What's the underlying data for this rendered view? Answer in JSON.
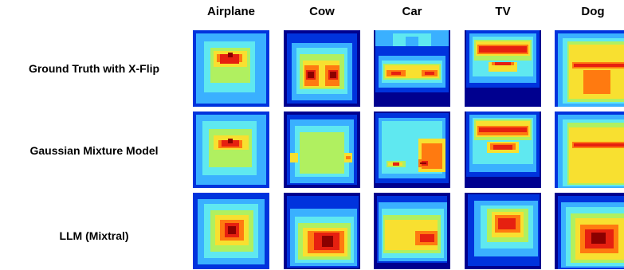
{
  "columns": [
    "Airplane",
    "Cow",
    "Car",
    "TV",
    "Dog"
  ],
  "rows": [
    "Ground Truth with X-Flip",
    "Gaussian Mixture Model",
    "LLM (Mixtral)"
  ],
  "colors": {
    "darkblue": "#00008f",
    "blue": "#0033dd",
    "lightblue": "#3ab0ff",
    "cyan": "#5fe8f0",
    "yellowgreen": "#b0f060",
    "yellow": "#f8e030",
    "orange": "#ff7a10",
    "red": "#e62010",
    "darkred": "#8b0000"
  },
  "heatmaps": [
    [
      {
        "bg": "blue",
        "blocks": [
          [
            4,
            4,
            92,
            92,
            "lightblue"
          ],
          [
            14,
            14,
            78,
            78,
            "cyan"
          ],
          [
            22,
            22,
            72,
            66,
            "yellowgreen"
          ],
          [
            26,
            26,
            68,
            46,
            "yellow"
          ],
          [
            30,
            30,
            62,
            40,
            "orange"
          ],
          [
            34,
            30,
            58,
            42,
            "red"
          ],
          [
            44,
            28,
            50,
            34,
            "darkred"
          ]
        ]
      },
      {
        "bg": "darkblue",
        "blocks": [
          [
            4,
            4,
            92,
            92,
            "blue"
          ],
          [
            10,
            16,
            86,
            88,
            "lightblue"
          ],
          [
            16,
            22,
            80,
            80,
            "cyan"
          ],
          [
            20,
            30,
            76,
            74,
            "yellowgreen"
          ],
          [
            24,
            38,
            70,
            72,
            "yellow"
          ],
          [
            26,
            44,
            44,
            70,
            "orange"
          ],
          [
            52,
            44,
            70,
            70,
            "orange"
          ],
          [
            28,
            50,
            40,
            62,
            "red"
          ],
          [
            56,
            50,
            68,
            62,
            "red"
          ],
          [
            30,
            52,
            38,
            60,
            "darkred"
          ],
          [
            58,
            52,
            66,
            60,
            "darkred"
          ]
        ]
      },
      {
        "bg": "darkblue",
        "blocks": [
          [
            2,
            0,
            94,
            20,
            "lightblue"
          ],
          [
            24,
            4,
            72,
            20,
            "cyan"
          ],
          [
            40,
            8,
            56,
            28,
            "lightblue"
          ],
          [
            2,
            20,
            94,
            78,
            "blue"
          ],
          [
            6,
            32,
            90,
            72,
            "lightblue"
          ],
          [
            10,
            38,
            86,
            66,
            "cyan"
          ],
          [
            12,
            42,
            84,
            62,
            "yellowgreen"
          ],
          [
            14,
            44,
            82,
            60,
            "yellow"
          ],
          [
            16,
            50,
            40,
            58,
            "orange"
          ],
          [
            60,
            50,
            80,
            58,
            "orange"
          ],
          [
            22,
            52,
            34,
            56,
            "red"
          ],
          [
            64,
            52,
            76,
            56,
            "red"
          ]
        ]
      },
      {
        "bg": "darkblue",
        "blocks": [
          [
            2,
            0,
            94,
            72,
            "blue"
          ],
          [
            6,
            4,
            90,
            66,
            "lightblue"
          ],
          [
            10,
            8,
            86,
            58,
            "cyan"
          ],
          [
            12,
            12,
            84,
            38,
            "yellowgreen"
          ],
          [
            14,
            14,
            82,
            32,
            "yellow"
          ],
          [
            16,
            18,
            80,
            30,
            "orange"
          ],
          [
            18,
            20,
            78,
            28,
            "red"
          ],
          [
            30,
            40,
            66,
            52,
            "yellow"
          ],
          [
            34,
            40,
            62,
            44,
            "orange"
          ],
          [
            38,
            40,
            58,
            44,
            "red"
          ]
        ]
      },
      {
        "bg": "blue",
        "blocks": [
          [
            4,
            4,
            96,
            96,
            "lightblue"
          ],
          [
            10,
            10,
            96,
            92,
            "cyan"
          ],
          [
            16,
            14,
            96,
            90,
            "yellowgreen"
          ],
          [
            18,
            18,
            96,
            86,
            "yellow"
          ],
          [
            22,
            40,
            96,
            48,
            "orange"
          ],
          [
            24,
            42,
            96,
            46,
            "red"
          ],
          [
            30,
            48,
            80,
            84,
            "yellow"
          ],
          [
            36,
            50,
            70,
            80,
            "orange"
          ]
        ]
      }
    ],
    [
      {
        "bg": "blue",
        "blocks": [
          [
            4,
            4,
            92,
            92,
            "lightblue"
          ],
          [
            12,
            12,
            80,
            80,
            "cyan"
          ],
          [
            20,
            22,
            74,
            70,
            "yellowgreen"
          ],
          [
            26,
            30,
            70,
            48,
            "yellow"
          ],
          [
            32,
            36,
            62,
            46,
            "orange"
          ],
          [
            36,
            36,
            58,
            44,
            "red"
          ],
          [
            44,
            34,
            50,
            40,
            "darkred"
          ]
        ]
      },
      {
        "bg": "darkblue",
        "blocks": [
          [
            4,
            4,
            92,
            92,
            "blue"
          ],
          [
            8,
            10,
            88,
            90,
            "lightblue"
          ],
          [
            14,
            18,
            82,
            82,
            "cyan"
          ],
          [
            20,
            26,
            76,
            78,
            "yellowgreen"
          ],
          [
            24,
            34,
            70,
            74,
            "yellowgreen"
          ],
          [
            8,
            52,
            18,
            64,
            "yellow"
          ],
          [
            76,
            52,
            86,
            64,
            "yellow"
          ],
          [
            78,
            56,
            84,
            60,
            "orange"
          ]
        ]
      },
      {
        "bg": "darkblue",
        "blocks": [
          [
            2,
            2,
            94,
            90,
            "blue"
          ],
          [
            6,
            8,
            90,
            84,
            "lightblue"
          ],
          [
            10,
            12,
            86,
            78,
            "cyan"
          ],
          [
            56,
            34,
            90,
            76,
            "yellow"
          ],
          [
            60,
            40,
            86,
            72,
            "orange"
          ],
          [
            16,
            62,
            40,
            70,
            "yellowgreen"
          ],
          [
            18,
            64,
            36,
            68,
            "yellow"
          ],
          [
            24,
            64,
            32,
            68,
            "red"
          ],
          [
            56,
            60,
            72,
            70,
            "orange"
          ],
          [
            60,
            62,
            68,
            68,
            "red"
          ],
          [
            58,
            64,
            66,
            66,
            "darkred"
          ]
        ]
      },
      {
        "bg": "darkblue",
        "blocks": [
          [
            2,
            0,
            94,
            82,
            "blue"
          ],
          [
            6,
            4,
            90,
            76,
            "lightblue"
          ],
          [
            10,
            8,
            86,
            66,
            "cyan"
          ],
          [
            12,
            10,
            84,
            36,
            "yellowgreen"
          ],
          [
            14,
            12,
            82,
            32,
            "yellow"
          ],
          [
            16,
            18,
            80,
            30,
            "orange"
          ],
          [
            18,
            20,
            78,
            26,
            "red"
          ],
          [
            28,
            38,
            68,
            52,
            "yellow"
          ],
          [
            32,
            40,
            64,
            48,
            "orange"
          ],
          [
            36,
            42,
            60,
            48,
            "red"
          ]
        ]
      },
      {
        "bg": "blue",
        "blocks": [
          [
            4,
            4,
            96,
            96,
            "lightblue"
          ],
          [
            10,
            10,
            96,
            94,
            "cyan"
          ],
          [
            16,
            14,
            96,
            92,
            "yellowgreen"
          ],
          [
            18,
            20,
            96,
            90,
            "yellow"
          ],
          [
            22,
            38,
            96,
            46,
            "orange"
          ],
          [
            24,
            40,
            96,
            44,
            "red"
          ]
        ]
      }
    ],
    [
      {
        "bg": "blue",
        "blocks": [
          [
            6,
            8,
            90,
            90,
            "lightblue"
          ],
          [
            14,
            14,
            82,
            82,
            "cyan"
          ],
          [
            22,
            22,
            76,
            74,
            "yellowgreen"
          ],
          [
            28,
            28,
            70,
            66,
            "yellow"
          ],
          [
            34,
            34,
            64,
            60,
            "orange"
          ],
          [
            40,
            38,
            58,
            56,
            "red"
          ],
          [
            44,
            42,
            54,
            52,
            "darkred"
          ]
        ]
      },
      {
        "bg": "darkblue",
        "blocks": [
          [
            4,
            4,
            94,
            94,
            "blue"
          ],
          [
            8,
            20,
            92,
            92,
            "lightblue"
          ],
          [
            14,
            30,
            88,
            88,
            "cyan"
          ],
          [
            18,
            38,
            84,
            84,
            "yellowgreen"
          ],
          [
            24,
            44,
            80,
            80,
            "yellow"
          ],
          [
            30,
            48,
            76,
            76,
            "orange"
          ],
          [
            38,
            50,
            70,
            72,
            "red"
          ],
          [
            48,
            54,
            62,
            68,
            "darkred"
          ]
        ]
      },
      {
        "bg": "darkblue",
        "blocks": [
          [
            4,
            4,
            92,
            88,
            "blue"
          ],
          [
            6,
            12,
            92,
            86,
            "lightblue"
          ],
          [
            10,
            20,
            88,
            82,
            "cyan"
          ],
          [
            12,
            28,
            84,
            76,
            "yellowgreen"
          ],
          [
            14,
            34,
            80,
            72,
            "yellow"
          ],
          [
            16,
            40,
            76,
            68,
            "yellow"
          ],
          [
            52,
            48,
            80,
            66,
            "orange"
          ],
          [
            58,
            52,
            76,
            62,
            "red"
          ]
        ]
      },
      {
        "bg": "darkblue",
        "blocks": [
          [
            4,
            2,
            94,
            92,
            "blue"
          ],
          [
            12,
            10,
            92,
            80,
            "lightblue"
          ],
          [
            20,
            16,
            86,
            70,
            "cyan"
          ],
          [
            28,
            20,
            80,
            62,
            "yellowgreen"
          ],
          [
            34,
            24,
            74,
            56,
            "yellow"
          ],
          [
            38,
            28,
            70,
            50,
            "orange"
          ],
          [
            42,
            32,
            64,
            46,
            "red"
          ]
        ]
      },
      {
        "bg": "darkblue",
        "blocks": [
          [
            4,
            4,
            96,
            96,
            "blue"
          ],
          [
            8,
            12,
            96,
            94,
            "lightblue"
          ],
          [
            14,
            18,
            96,
            92,
            "cyan"
          ],
          [
            20,
            26,
            92,
            88,
            "yellowgreen"
          ],
          [
            26,
            32,
            88,
            84,
            "yellow"
          ],
          [
            32,
            40,
            80,
            76,
            "orange"
          ],
          [
            38,
            46,
            74,
            70,
            "red"
          ],
          [
            46,
            50,
            64,
            64,
            "darkred"
          ]
        ]
      }
    ]
  ]
}
